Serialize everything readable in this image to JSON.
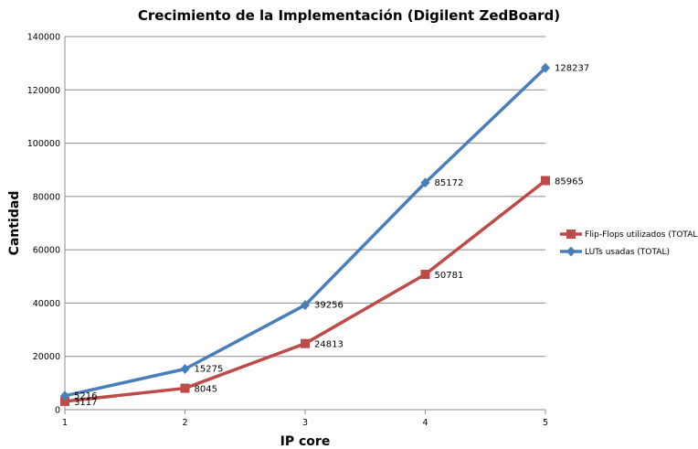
{
  "chart_data": {
    "type": "line",
    "title": "Crecimiento de la Implementación (Digilent ZedBoard)",
    "xlabel": "IP core",
    "ylabel": "Cantidad",
    "x": [
      1,
      2,
      3,
      4,
      5
    ],
    "ylim": [
      0,
      140000
    ],
    "yticks": [
      0,
      20000,
      40000,
      60000,
      80000,
      100000,
      120000,
      140000
    ],
    "grid": true,
    "legend_position": "right",
    "series": [
      {
        "name": "Flip-Flops utilizados (TOTAL)",
        "color": "#be4b48",
        "marker": "square",
        "values": [
          3117,
          8045,
          24813,
          50781,
          85965
        ]
      },
      {
        "name": "LUTs usadas (TOTAL)",
        "color": "#4a7ebb",
        "marker": "diamond",
        "values": [
          5216,
          15275,
          39256,
          85172,
          128237
        ]
      }
    ]
  }
}
